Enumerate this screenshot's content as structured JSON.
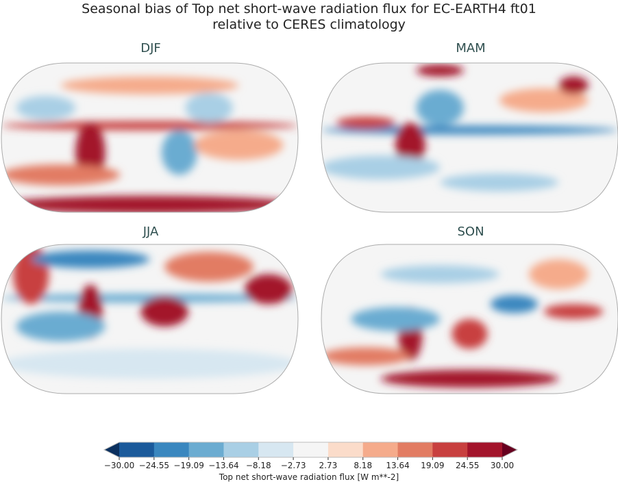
{
  "title_line1": "Seasonal bias of Top net short-wave radiation flux for EC-EARTH4 ft01",
  "title_line2": "relative to CERES climatology",
  "panels": [
    {
      "label": "DJF"
    },
    {
      "label": "MAM"
    },
    {
      "label": "JJA"
    },
    {
      "label": "SON"
    }
  ],
  "colorbar": {
    "label": "Top net short-wave radiation flux [W m**-2]",
    "ticks": [
      "−30.00",
      "−24.55",
      "−19.09",
      "−13.64",
      "−8.18",
      "−2.73",
      "2.73",
      "8.18",
      "13.64",
      "19.09",
      "24.55",
      "30.00"
    ],
    "colors": [
      "#1b5a9b",
      "#3a87bf",
      "#6bacd1",
      "#a9cfe5",
      "#d7e7f1",
      "#f5f5f5",
      "#fbdcca",
      "#f5ab8b",
      "#e27c63",
      "#c8403f",
      "#a3142b"
    ],
    "extend_low_color": "#0b305f",
    "extend_high_color": "#67001f",
    "extend": "both",
    "projection": "Robinson"
  }
}
